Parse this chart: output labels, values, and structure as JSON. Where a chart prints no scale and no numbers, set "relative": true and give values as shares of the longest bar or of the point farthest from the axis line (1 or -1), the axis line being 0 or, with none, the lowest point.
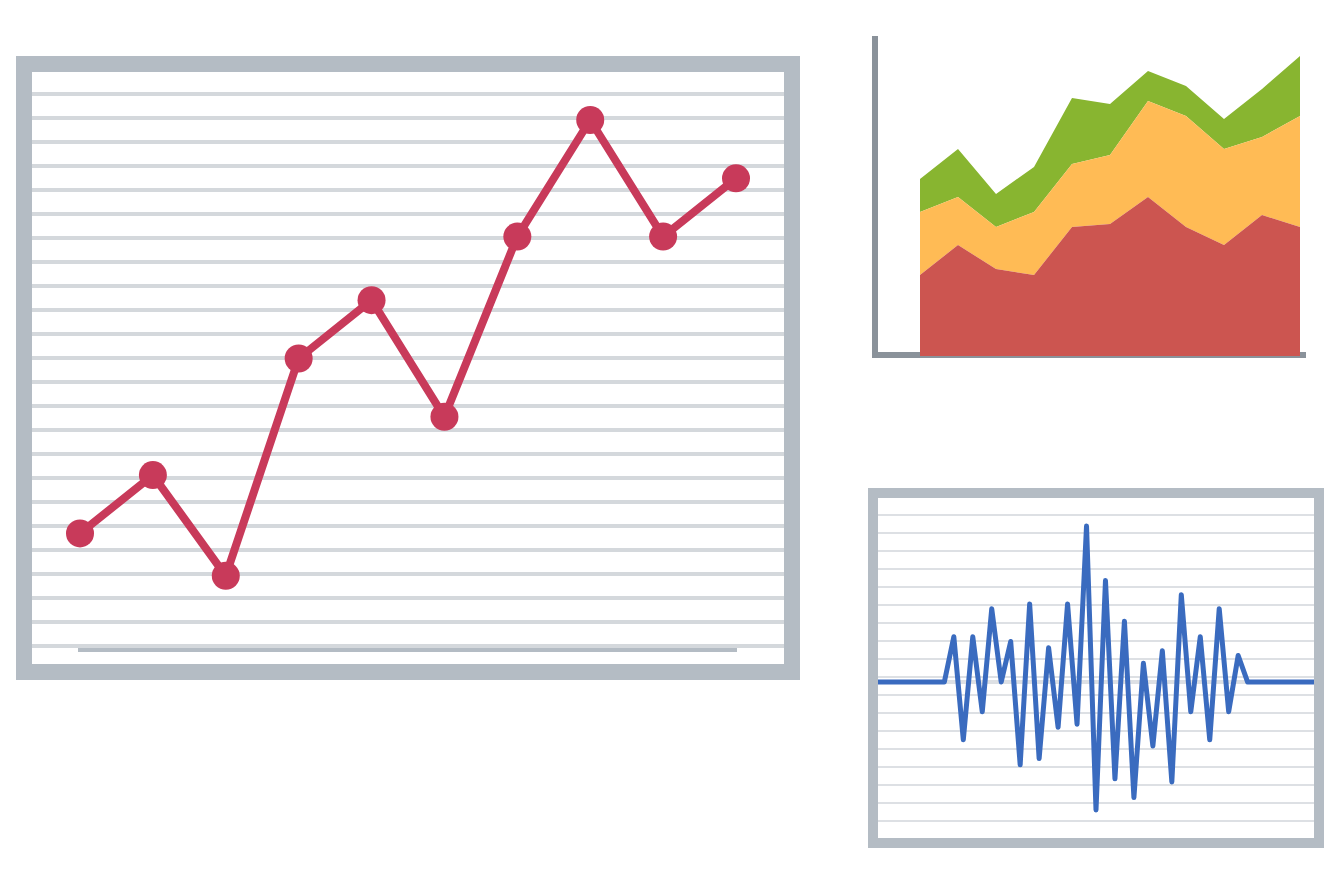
{
  "chart_data": [
    {
      "type": "line",
      "relative": true,
      "marker": "circle",
      "categories": [
        null,
        null,
        null,
        null,
        null,
        null,
        null,
        null,
        null,
        null
      ],
      "series": [
        {
          "color": "#c83a5a",
          "values": [
            0.22,
            0.33,
            0.14,
            0.55,
            0.66,
            0.44,
            0.78,
            1,
            0.78,
            0.89
          ]
        }
      ]
    },
    {
      "type": "area",
      "relative": true,
      "stacked": true,
      "categories": [
        null,
        null,
        null,
        null,
        null,
        null,
        null,
        null,
        null,
        null,
        null
      ],
      "series": [
        {
          "color": "#cc5550",
          "values": [
            0.27,
            0.37,
            0.29,
            0.27,
            0.43,
            0.44,
            0.53,
            0.43,
            0.37,
            0.47,
            0.43
          ]
        },
        {
          "color": "#ffbb55",
          "values": [
            0.21,
            0.16,
            0.14,
            0.21,
            0.21,
            0.23,
            0.32,
            0.37,
            0.32,
            0.26,
            0.37
          ]
        },
        {
          "color": "#88b530",
          "values": [
            0.11,
            0.16,
            0.11,
            0.15,
            0.22,
            0.17,
            0.1,
            0.1,
            0.1,
            0.16,
            0.2
          ]
        }
      ]
    },
    {
      "type": "line",
      "relative": true,
      "marker": "none",
      "categories": [
        null,
        null,
        null,
        null,
        null,
        null,
        null,
        null,
        null,
        null,
        null,
        null,
        null,
        null,
        null,
        null,
        null,
        null,
        null,
        null,
        null,
        null,
        null,
        null,
        null,
        null,
        null,
        null,
        null,
        null,
        null,
        null,
        null,
        null,
        null,
        null,
        null,
        null,
        null,
        null,
        null,
        null,
        null,
        null,
        null,
        null,
        null
      ],
      "series": [
        {
          "color": "#3a6bbf",
          "values": [
            0,
            0,
            0,
            0,
            0,
            0,
            0,
            0,
            0.29,
            -0.37,
            0.29,
            -0.19,
            0.47,
            0,
            0.26,
            -0.53,
            0.5,
            -0.49,
            0.22,
            -0.29,
            0.5,
            -0.27,
            1,
            -0.82,
            0.65,
            -0.62,
            0.39,
            -0.74,
            0.12,
            -0.41,
            0.2,
            -0.64,
            0.56,
            -0.19,
            0.29,
            -0.37,
            0.47,
            -0.19,
            0.17,
            0,
            0,
            0,
            0,
            0,
            0,
            0,
            0
          ]
        }
      ]
    }
  ]
}
